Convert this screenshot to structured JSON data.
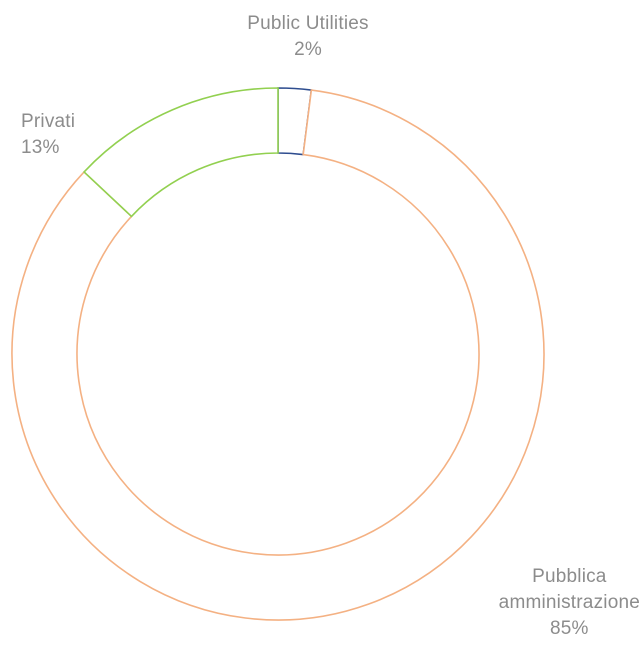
{
  "chart_data": {
    "type": "pie",
    "variant": "donut",
    "title": "",
    "categories": [
      "Public Utilities",
      "Pubblica amministrazione",
      "Privati"
    ],
    "values": [
      2,
      85,
      13
    ],
    "value_labels": [
      "2%",
      "85%",
      "13%"
    ],
    "label_lines": [
      [
        "Public Utilities"
      ],
      [
        "Pubblica",
        "amministrazione"
      ],
      [
        "Privati"
      ]
    ],
    "colors": [
      "#2e4d8f",
      "#f4b183",
      "#92d050"
    ],
    "style": "outline-only",
    "start_angle_deg": 0,
    "direction": "clockwise",
    "legend": "none"
  }
}
